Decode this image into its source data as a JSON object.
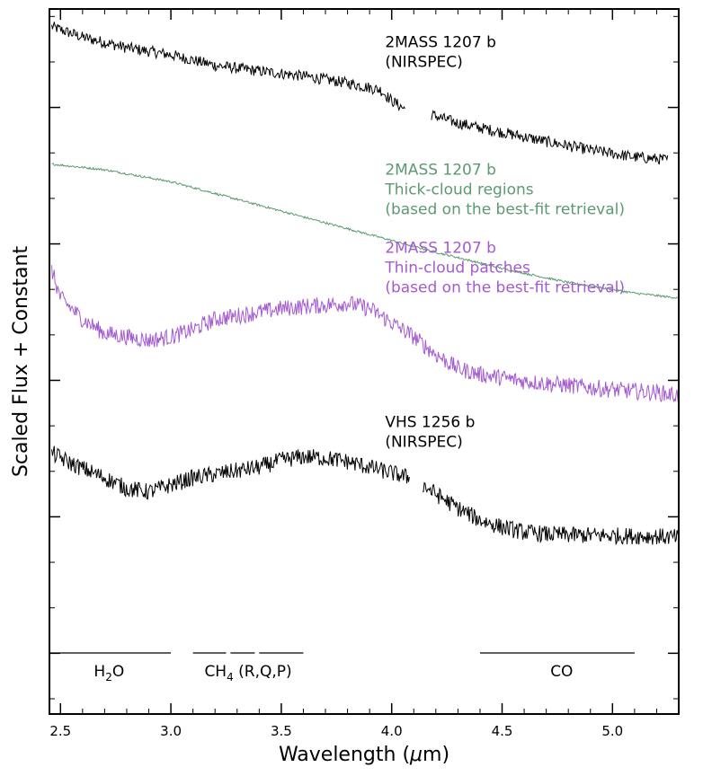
{
  "chart_data": {
    "type": "line",
    "xlabel_main": "Wavelength (",
    "xlabel_mu": "μ",
    "xlabel_tail": "m)",
    "ylabel": "Scaled Flux + Constant",
    "xlim": [
      2.45,
      5.3
    ],
    "ylim": [
      0,
      1
    ],
    "xticks": [
      "2.5",
      "3.0",
      "3.5",
      "4.0",
      "4.5",
      "5.0"
    ],
    "xtick_values": [
      2.5,
      3.0,
      3.5,
      4.0,
      4.5,
      5.0
    ],
    "series": [
      {
        "color": "#000000",
        "noise": 0.008,
        "label_lines": [
          "2MASS 1207 b",
          "(NIRSPEC)"
        ],
        "segments": [
          {
            "x": [
              2.46,
              2.6,
              2.8,
              3.0,
              3.2,
              3.4,
              3.6,
              3.8,
              3.95,
              4.0,
              4.06
            ],
            "y": [
              0.975,
              0.96,
              0.945,
              0.935,
              0.92,
              0.912,
              0.905,
              0.895,
              0.885,
              0.87,
              0.858
            ]
          },
          {
            "x": [
              4.18,
              4.3,
              4.5,
              4.7,
              4.9,
              5.1,
              5.25
            ],
            "y": [
              0.85,
              0.838,
              0.825,
              0.812,
              0.8,
              0.79,
              0.786
            ]
          }
        ]
      },
      {
        "color": "#5b9a70",
        "noise": 0.0015,
        "label_lines": [
          "2MASS 1207 b",
          "Thick-cloud regions",
          "(based on the best-fit retrieval)"
        ],
        "segments": [
          {
            "x": [
              2.46,
              2.7,
              3.0,
              3.3,
              3.6,
              3.9,
              4.2,
              4.5,
              4.8,
              5.1,
              5.3
            ],
            "y": [
              0.78,
              0.772,
              0.755,
              0.73,
              0.705,
              0.68,
              0.655,
              0.632,
              0.612,
              0.597,
              0.59
            ]
          }
        ]
      },
      {
        "color": "#a45ad0",
        "noise": 0.012,
        "label_lines": [
          "2MASS 1207 b",
          "Thin-cloud patches",
          "(based on the best-fit retrieval)"
        ],
        "segments": [
          {
            "x": [
              2.46,
              2.5,
              2.6,
              2.7,
              2.8,
              2.9,
              3.0,
              3.1,
              3.2,
              3.3,
              3.4,
              3.5,
              3.6,
              3.7,
              3.8,
              3.9,
              4.0,
              4.1,
              4.2,
              4.3,
              4.4,
              4.6,
              4.8,
              5.0,
              5.2,
              5.3
            ],
            "y": [
              0.63,
              0.59,
              0.56,
              0.54,
              0.535,
              0.53,
              0.535,
              0.545,
              0.56,
              0.565,
              0.57,
              0.575,
              0.578,
              0.58,
              0.583,
              0.575,
              0.555,
              0.535,
              0.51,
              0.49,
              0.482,
              0.472,
              0.466,
              0.46,
              0.456,
              0.452
            ]
          }
        ]
      },
      {
        "color": "#000000",
        "noise": 0.012,
        "label_lines": [
          "VHS 1256 b",
          "(NIRSPEC)"
        ],
        "segments": [
          {
            "x": [
              2.46,
              2.55,
              2.7,
              2.8,
              2.9,
              3.0,
              3.1,
              3.2,
              3.3,
              3.4,
              3.5,
              3.6,
              3.7,
              3.8,
              3.9,
              4.0,
              4.08
            ],
            "y": [
              0.37,
              0.355,
              0.335,
              0.32,
              0.315,
              0.325,
              0.335,
              0.34,
              0.345,
              0.35,
              0.36,
              0.365,
              0.363,
              0.358,
              0.35,
              0.342,
              0.335
            ]
          },
          {
            "x": [
              4.14,
              4.2,
              4.3,
              4.4,
              4.5,
              4.6,
              4.7,
              4.8,
              5.0,
              5.2,
              5.3
            ],
            "y": [
              0.325,
              0.312,
              0.292,
              0.275,
              0.265,
              0.258,
              0.255,
              0.254,
              0.253,
              0.252,
              0.25
            ]
          }
        ]
      }
    ],
    "bands": [
      {
        "label": "H",
        "sub": "2",
        "tail": "O",
        "ranges": [
          [
            2.45,
            3.0
          ]
        ]
      },
      {
        "label": "CH",
        "sub": "4",
        "tail": " (R,Q,P)",
        "ranges": [
          [
            3.1,
            3.25
          ],
          [
            3.27,
            3.38
          ],
          [
            3.4,
            3.6
          ]
        ]
      },
      {
        "label": "CO",
        "sub": "",
        "tail": "",
        "ranges": [
          [
            4.4,
            5.1
          ]
        ]
      }
    ]
  }
}
